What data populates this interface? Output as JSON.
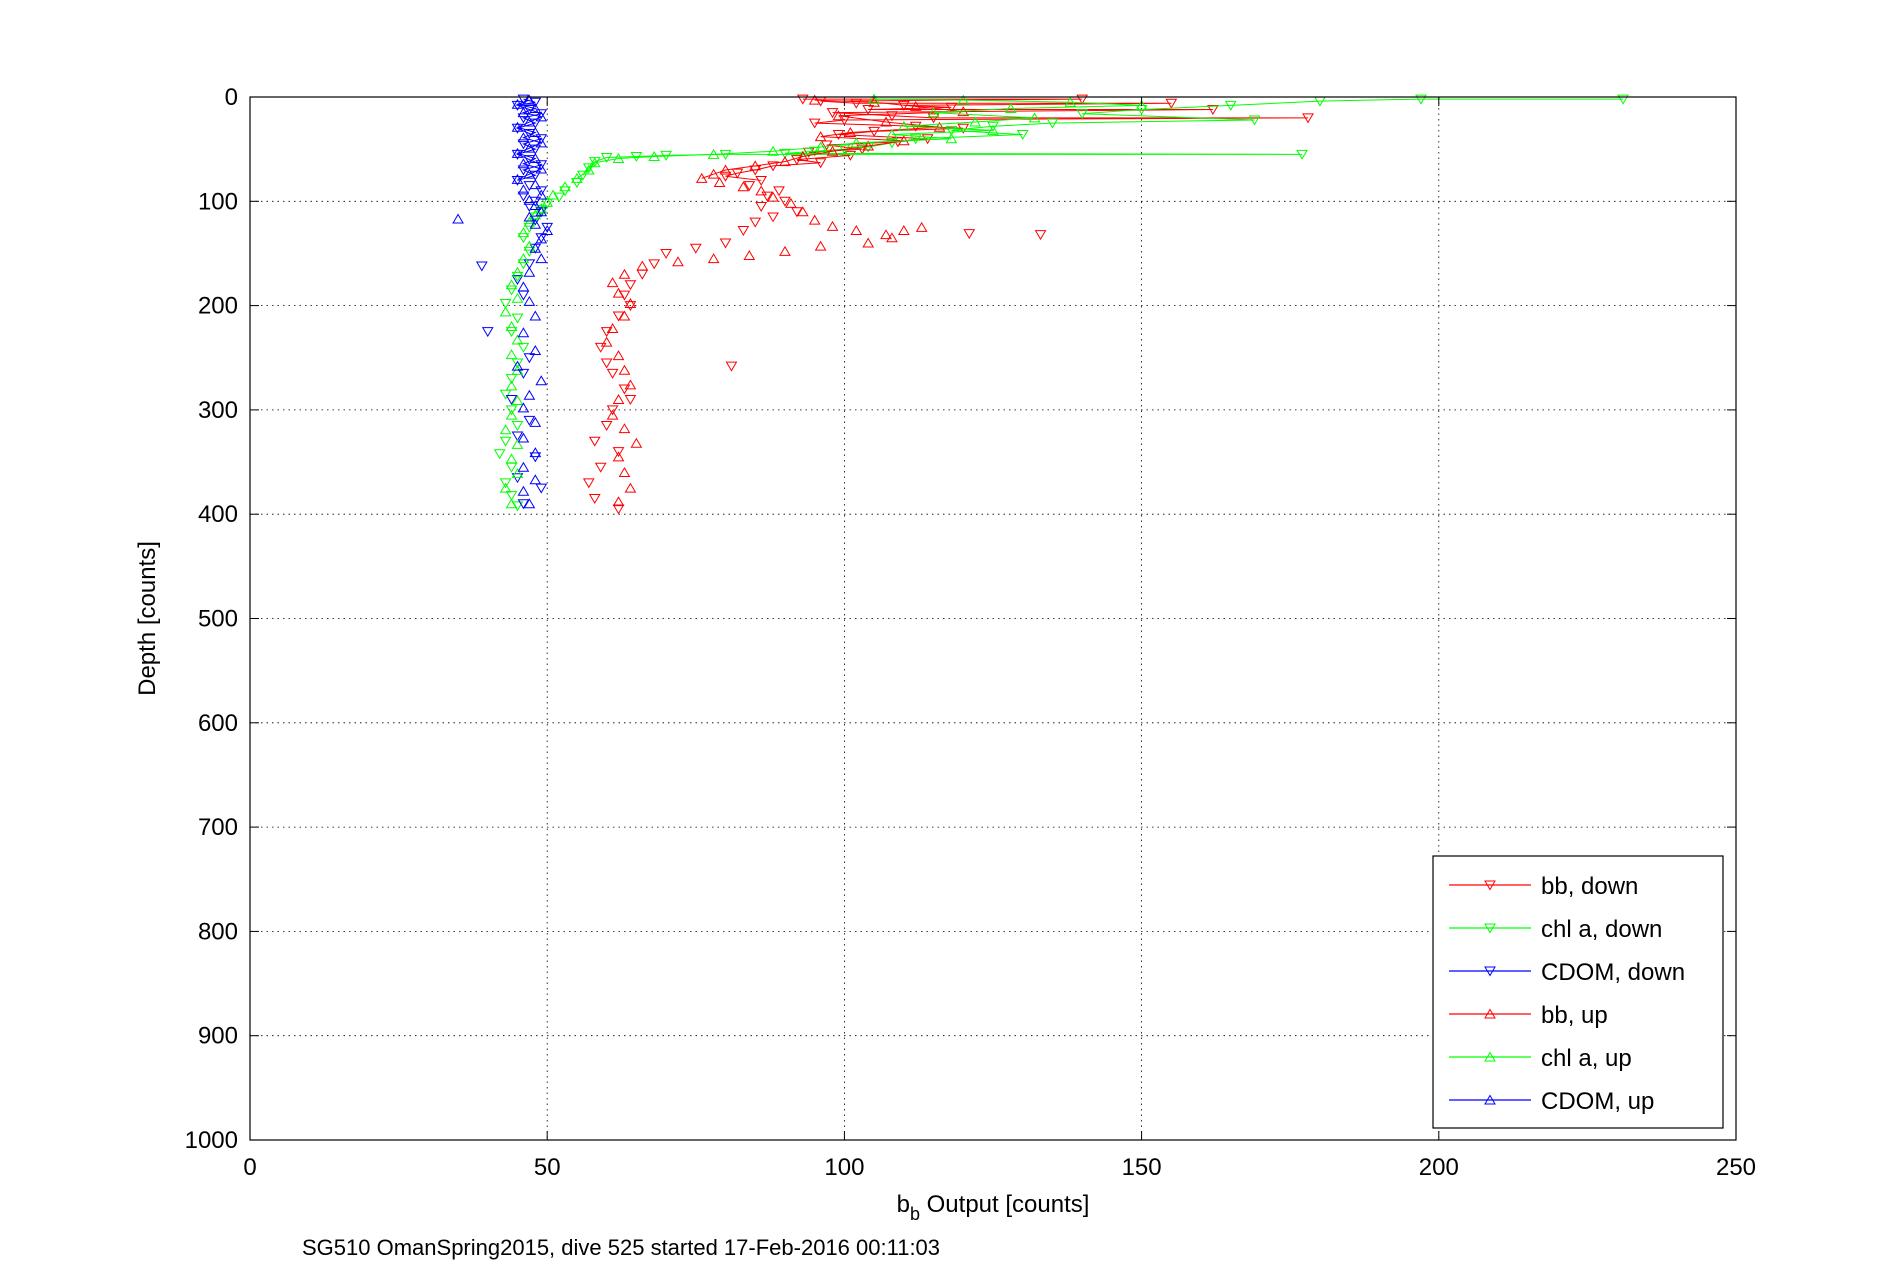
{
  "chart_data": {
    "type": "scatter",
    "title": "",
    "xlabel_base": "b",
    "xlabel_sub": "b",
    "xlabel_rest": " Output [counts]",
    "ylabel": "Depth [counts]",
    "footer": "SG510 OmanSpring2015, dive 525 started 17-Feb-2016 00:11:03",
    "xlim": [
      0,
      250
    ],
    "ylim": [
      0,
      1000
    ],
    "y_reversed": true,
    "grid": true,
    "x_ticks": [
      0,
      50,
      100,
      150,
      200,
      250
    ],
    "y_ticks": [
      0,
      100,
      200,
      300,
      400,
      500,
      600,
      700,
      800,
      900,
      1000
    ],
    "legend_position": "bottom-right",
    "legend": [
      {
        "label": "bb, down",
        "color": "#ff0000",
        "marker": "triangle-down"
      },
      {
        "label": "chl a, down",
        "color": "#00ff00",
        "marker": "triangle-down"
      },
      {
        "label": "CDOM, down",
        "color": "#0000ff",
        "marker": "triangle-down"
      },
      {
        "label": "bb, up",
        "color": "#ff0000",
        "marker": "triangle-up"
      },
      {
        "label": "chl a, up",
        "color": "#00ff00",
        "marker": "triangle-up"
      },
      {
        "label": "CDOM, up",
        "color": "#0000ff",
        "marker": "triangle-up"
      }
    ],
    "series": [
      {
        "name": "bb, down",
        "color": "#ff0000",
        "marker": "triangle-down",
        "points": [
          [
            93,
            2
          ],
          [
            96,
            4
          ],
          [
            102,
            6
          ],
          [
            110,
            8
          ],
          [
            118,
            10
          ],
          [
            104,
            12
          ],
          [
            98,
            15
          ],
          [
            108,
            18
          ],
          [
            115,
            20
          ],
          [
            100,
            22
          ],
          [
            95,
            25
          ],
          [
            112,
            28
          ],
          [
            120,
            30
          ],
          [
            105,
            33
          ],
          [
            99,
            36
          ],
          [
            114,
            40
          ],
          [
            109,
            43
          ],
          [
            97,
            46
          ],
          [
            103,
            50
          ],
          [
            94,
            53
          ],
          [
            101,
            56
          ],
          [
            92,
            60
          ],
          [
            96,
            63
          ],
          [
            88,
            66
          ],
          [
            85,
            70
          ],
          [
            82,
            73
          ],
          [
            80,
            76
          ],
          [
            86,
            80
          ],
          [
            84,
            85
          ],
          [
            89,
            90
          ],
          [
            87,
            95
          ],
          [
            90,
            100
          ],
          [
            86,
            105
          ],
          [
            92,
            110
          ],
          [
            88,
            115
          ],
          [
            85,
            120
          ],
          [
            83,
            128
          ],
          [
            80,
            140
          ],
          [
            75,
            145
          ],
          [
            70,
            150
          ],
          [
            68,
            160
          ],
          [
            66,
            170
          ],
          [
            64,
            180
          ],
          [
            63,
            190
          ],
          [
            64,
            200
          ],
          [
            62,
            210
          ],
          [
            60,
            225
          ],
          [
            59,
            240
          ],
          [
            60,
            255
          ],
          [
            61,
            265
          ],
          [
            63,
            280
          ],
          [
            64,
            290
          ],
          [
            61,
            300
          ],
          [
            60,
            315
          ],
          [
            58,
            330
          ],
          [
            62,
            340
          ],
          [
            59,
            355
          ],
          [
            57,
            370
          ],
          [
            58,
            385
          ],
          [
            62,
            395
          ],
          [
            81,
            258
          ],
          [
            133,
            132
          ],
          [
            121,
            131
          ],
          [
            140,
            2
          ],
          [
            155,
            6
          ],
          [
            162,
            12
          ],
          [
            178,
            20
          ]
        ]
      },
      {
        "name": "chl a, down",
        "color": "#00ff00",
        "marker": "triangle-down",
        "points": [
          [
            231,
            2
          ],
          [
            197,
            2
          ],
          [
            180,
            4
          ],
          [
            165,
            8
          ],
          [
            150,
            12
          ],
          [
            140,
            16
          ],
          [
            169,
            22
          ],
          [
            135,
            25
          ],
          [
            177,
            55
          ],
          [
            125,
            28
          ],
          [
            118,
            32
          ],
          [
            130,
            36
          ],
          [
            112,
            40
          ],
          [
            108,
            44
          ],
          [
            104,
            48
          ],
          [
            100,
            50
          ],
          [
            95,
            52
          ],
          [
            90,
            54
          ],
          [
            80,
            55
          ],
          [
            70,
            56
          ],
          [
            65,
            57
          ],
          [
            60,
            58
          ],
          [
            58,
            62
          ],
          [
            57,
            68
          ],
          [
            56,
            75
          ],
          [
            55,
            82
          ],
          [
            53,
            90
          ],
          [
            52,
            96
          ],
          [
            50,
            102
          ],
          [
            49,
            108
          ],
          [
            48,
            115
          ],
          [
            47,
            125
          ],
          [
            46,
            135
          ],
          [
            47,
            148
          ],
          [
            46,
            160
          ],
          [
            45,
            172
          ],
          [
            44,
            185
          ],
          [
            43,
            198
          ],
          [
            45,
            212
          ],
          [
            44,
            225
          ],
          [
            46,
            240
          ],
          [
            45,
            255
          ],
          [
            44,
            270
          ],
          [
            43,
            285
          ],
          [
            44,
            300
          ],
          [
            45,
            315
          ],
          [
            43,
            330
          ],
          [
            42,
            342
          ],
          [
            44,
            355
          ],
          [
            43,
            370
          ],
          [
            44,
            382
          ],
          [
            45,
            392
          ]
        ]
      },
      {
        "name": "CDOM, down",
        "color": "#0000ff",
        "marker": "triangle-down",
        "points": [
          [
            46,
            2
          ],
          [
            48,
            5
          ],
          [
            45,
            8
          ],
          [
            47,
            12
          ],
          [
            49,
            16
          ],
          [
            46,
            20
          ],
          [
            48,
            25
          ],
          [
            45,
            30
          ],
          [
            47,
            35
          ],
          [
            49,
            40
          ],
          [
            46,
            45
          ],
          [
            48,
            50
          ],
          [
            45,
            55
          ],
          [
            47,
            60
          ],
          [
            49,
            65
          ],
          [
            46,
            70
          ],
          [
            48,
            75
          ],
          [
            45,
            80
          ],
          [
            47,
            85
          ],
          [
            49,
            90
          ],
          [
            46,
            95
          ],
          [
            48,
            100
          ],
          [
            47,
            105
          ],
          [
            49,
            110
          ],
          [
            48,
            118
          ],
          [
            50,
            125
          ],
          [
            49,
            135
          ],
          [
            48,
            145
          ],
          [
            47,
            160
          ],
          [
            39,
            162
          ],
          [
            45,
            175
          ],
          [
            46,
            190
          ],
          [
            40,
            225
          ],
          [
            47,
            250
          ],
          [
            46,
            265
          ],
          [
            44,
            290
          ],
          [
            47,
            310
          ],
          [
            45,
            325
          ],
          [
            48,
            345
          ],
          [
            45,
            365
          ],
          [
            49,
            375
          ],
          [
            46,
            390
          ]
        ]
      },
      {
        "name": "bb, up",
        "color": "#ff0000",
        "marker": "triangle-up",
        "points": [
          [
            95,
            3
          ],
          [
            105,
            5
          ],
          [
            112,
            9
          ],
          [
            120,
            14
          ],
          [
            99,
            18
          ],
          [
            107,
            24
          ],
          [
            116,
            29
          ],
          [
            101,
            34
          ],
          [
            96,
            38
          ],
          [
            110,
            42
          ],
          [
            104,
            47
          ],
          [
            98,
            52
          ],
          [
            93,
            57
          ],
          [
            90,
            62
          ],
          [
            85,
            66
          ],
          [
            80,
            70
          ],
          [
            78,
            74
          ],
          [
            76,
            78
          ],
          [
            79,
            82
          ],
          [
            83,
            86
          ],
          [
            86,
            90
          ],
          [
            88,
            96
          ],
          [
            91,
            102
          ],
          [
            93,
            110
          ],
          [
            95,
            118
          ],
          [
            98,
            124
          ],
          [
            102,
            128
          ],
          [
            107,
            132
          ],
          [
            110,
            128
          ],
          [
            113,
            125
          ],
          [
            108,
            135
          ],
          [
            104,
            140
          ],
          [
            96,
            143
          ],
          [
            90,
            148
          ],
          [
            84,
            152
          ],
          [
            78,
            155
          ],
          [
            72,
            158
          ],
          [
            66,
            162
          ],
          [
            63,
            170
          ],
          [
            61,
            178
          ],
          [
            62,
            188
          ],
          [
            64,
            198
          ],
          [
            63,
            210
          ],
          [
            61,
            222
          ],
          [
            60,
            235
          ],
          [
            62,
            248
          ],
          [
            63,
            262
          ],
          [
            64,
            276
          ],
          [
            62,
            290
          ],
          [
            61,
            305
          ],
          [
            63,
            318
          ],
          [
            65,
            332
          ],
          [
            62,
            345
          ],
          [
            63,
            360
          ],
          [
            64,
            375
          ],
          [
            62,
            388
          ]
        ]
      },
      {
        "name": "chl a, up",
        "color": "#00ff00",
        "marker": "triangle-up",
        "points": [
          [
            105,
            2
          ],
          [
            120,
            3
          ],
          [
            138,
            5
          ],
          [
            150,
            8
          ],
          [
            128,
            11
          ],
          [
            115,
            15
          ],
          [
            132,
            20
          ],
          [
            122,
            24
          ],
          [
            110,
            28
          ],
          [
            125,
            32
          ],
          [
            108,
            36
          ],
          [
            118,
            40
          ],
          [
            102,
            44
          ],
          [
            96,
            48
          ],
          [
            88,
            52
          ],
          [
            78,
            55
          ],
          [
            68,
            57
          ],
          [
            62,
            59
          ],
          [
            58,
            63
          ],
          [
            57,
            70
          ],
          [
            55,
            78
          ],
          [
            53,
            86
          ],
          [
            51,
            94
          ],
          [
            50,
            101
          ],
          [
            49,
            107
          ],
          [
            48,
            113
          ],
          [
            47,
            120
          ],
          [
            46,
            130
          ],
          [
            47,
            143
          ],
          [
            46,
            155
          ],
          [
            45,
            168
          ],
          [
            44,
            180
          ],
          [
            45,
            193
          ],
          [
            43,
            206
          ],
          [
            44,
            220
          ],
          [
            45,
            233
          ],
          [
            44,
            247
          ],
          [
            45,
            262
          ],
          [
            44,
            277
          ],
          [
            45,
            291
          ],
          [
            44,
            305
          ],
          [
            43,
            319
          ],
          [
            45,
            333
          ],
          [
            44,
            347
          ],
          [
            45,
            361
          ],
          [
            43,
            375
          ],
          [
            44,
            390
          ]
        ]
      },
      {
        "name": "CDOM, up",
        "color": "#0000ff",
        "marker": "triangle-up",
        "points": [
          [
            47,
            3
          ],
          [
            45,
            7
          ],
          [
            48,
            11
          ],
          [
            46,
            15
          ],
          [
            49,
            19
          ],
          [
            47,
            24
          ],
          [
            45,
            29
          ],
          [
            48,
            34
          ],
          [
            46,
            39
          ],
          [
            49,
            44
          ],
          [
            47,
            49
          ],
          [
            45,
            54
          ],
          [
            48,
            59
          ],
          [
            46,
            64
          ],
          [
            49,
            69
          ],
          [
            47,
            74
          ],
          [
            45,
            79
          ],
          [
            48,
            84
          ],
          [
            46,
            89
          ],
          [
            49,
            94
          ],
          [
            47,
            99
          ],
          [
            48,
            104
          ],
          [
            49,
            110
          ],
          [
            47,
            115
          ],
          [
            35,
            117
          ],
          [
            48,
            122
          ],
          [
            50,
            128
          ],
          [
            49,
            136
          ],
          [
            48,
            145
          ],
          [
            49,
            155
          ],
          [
            47,
            168
          ],
          [
            46,
            182
          ],
          [
            47,
            196
          ],
          [
            48,
            210
          ],
          [
            46,
            226
          ],
          [
            48,
            243
          ],
          [
            45,
            258
          ],
          [
            49,
            272
          ],
          [
            47,
            286
          ],
          [
            46,
            298
          ],
          [
            48,
            312
          ],
          [
            46,
            327
          ],
          [
            48,
            341
          ],
          [
            46,
            355
          ],
          [
            48,
            367
          ],
          [
            46,
            378
          ],
          [
            47,
            390
          ]
        ]
      }
    ]
  }
}
